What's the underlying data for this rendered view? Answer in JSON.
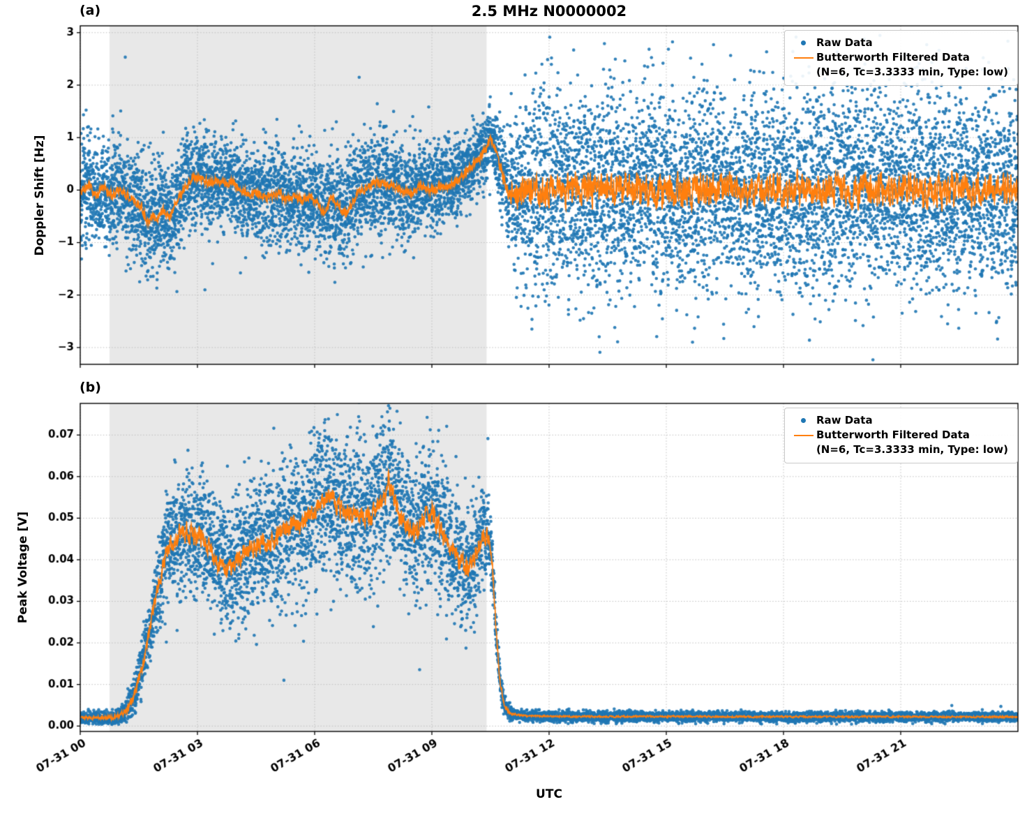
{
  "chart_data": {
    "type": "scatter",
    "title": "2.5 MHz N0000002",
    "xlabel": "UTC",
    "legend": {
      "raw_label": "Raw Data",
      "filtered_label": "Butterworth Filtered Data",
      "filtered_sublabel": "(N=6, Tc=3.3333 min, Type: low)"
    },
    "colors": {
      "raw": "#1f77b4",
      "filtered": "#ff7f0e",
      "shade": "#e8e8e8",
      "grid": "#bdbdbd",
      "axis": "#000000"
    },
    "x_hours_range": [
      0,
      24
    ],
    "x_ticks": [
      {
        "t": 0,
        "label": "07-31 00"
      },
      {
        "t": 3,
        "label": "07-31 03"
      },
      {
        "t": 6,
        "label": "07-31 06"
      },
      {
        "t": 9,
        "label": "07-31 09"
      },
      {
        "t": 12,
        "label": "07-31 12"
      },
      {
        "t": 15,
        "label": "07-31 15"
      },
      {
        "t": 18,
        "label": "07-31 18"
      },
      {
        "t": 21,
        "label": "07-31 21"
      }
    ],
    "shaded_region_hours": [
      0.75,
      10.4
    ],
    "panels": [
      {
        "tag": "(a)",
        "ylabel": "Doppler Shift [Hz]",
        "ylim": [
          -3.32,
          3.13
        ],
        "yticks": [
          {
            "v": -3,
            "label": "−3"
          },
          {
            "v": -2,
            "label": "−2"
          },
          {
            "v": -1,
            "label": "−1"
          },
          {
            "v": 0,
            "label": "0"
          },
          {
            "v": 1,
            "label": "1"
          },
          {
            "v": 2,
            "label": "2"
          },
          {
            "v": 3,
            "label": "3"
          }
        ],
        "n_scatter": 11000,
        "filtered_keypoints": [
          [
            0,
            -0.05
          ],
          [
            0.2,
            0.12
          ],
          [
            0.4,
            -0.12
          ],
          [
            0.6,
            0.05
          ],
          [
            0.8,
            -0.08
          ],
          [
            1.0,
            -0.02
          ],
          [
            1.2,
            -0.12
          ],
          [
            1.4,
            -0.22
          ],
          [
            1.6,
            -0.38
          ],
          [
            1.75,
            -0.62
          ],
          [
            1.85,
            -0.45
          ],
          [
            1.95,
            -0.62
          ],
          [
            2.1,
            -0.4
          ],
          [
            2.3,
            -0.48
          ],
          [
            2.5,
            -0.18
          ],
          [
            2.7,
            0.08
          ],
          [
            2.9,
            0.25
          ],
          [
            3.1,
            0.22
          ],
          [
            3.3,
            0.12
          ],
          [
            3.5,
            0.18
          ],
          [
            3.7,
            0.1
          ],
          [
            3.9,
            0.15
          ],
          [
            4.1,
            0.02
          ],
          [
            4.3,
            -0.08
          ],
          [
            4.5,
            -0.05
          ],
          [
            4.7,
            -0.15
          ],
          [
            4.9,
            -0.1
          ],
          [
            5.1,
            -0.05
          ],
          [
            5.3,
            -0.18
          ],
          [
            5.5,
            -0.12
          ],
          [
            5.7,
            -0.2
          ],
          [
            5.9,
            -0.12
          ],
          [
            6.1,
            -0.3
          ],
          [
            6.25,
            -0.45
          ],
          [
            6.4,
            -0.18
          ],
          [
            6.6,
            -0.28
          ],
          [
            6.75,
            -0.48
          ],
          [
            6.9,
            -0.35
          ],
          [
            7.05,
            -0.12
          ],
          [
            7.2,
            0.0
          ],
          [
            7.4,
            0.1
          ],
          [
            7.6,
            0.15
          ],
          [
            7.8,
            0.12
          ],
          [
            8.0,
            0.05
          ],
          [
            8.2,
            0.0
          ],
          [
            8.4,
            -0.05
          ],
          [
            8.6,
            0.02
          ],
          [
            8.8,
            0.08
          ],
          [
            9.0,
            0.0
          ],
          [
            9.2,
            0.05
          ],
          [
            9.4,
            0.08
          ],
          [
            9.6,
            0.15
          ],
          [
            9.8,
            0.28
          ],
          [
            10.0,
            0.45
          ],
          [
            10.2,
            0.6
          ],
          [
            10.35,
            0.75
          ],
          [
            10.5,
            1.0
          ],
          [
            10.65,
            0.7
          ],
          [
            10.8,
            0.3
          ],
          [
            10.95,
            0.0
          ],
          [
            11.1,
            -0.1
          ],
          [
            11.5,
            0.0
          ],
          [
            12,
            0.0
          ],
          [
            24,
            0.0
          ]
        ],
        "filtered_noise_amp": [
          [
            0,
            0.07
          ],
          [
            10.3,
            0.07
          ],
          [
            10.6,
            0.05
          ],
          [
            10.9,
            0.12
          ],
          [
            11.2,
            0.26
          ],
          [
            24,
            0.26
          ]
        ],
        "scatter_sigma": [
          [
            0,
            0.55
          ],
          [
            0.5,
            0.5
          ],
          [
            1.0,
            0.45
          ],
          [
            1.8,
            0.55
          ],
          [
            2.5,
            0.5
          ],
          [
            3.0,
            0.42
          ],
          [
            4.0,
            0.45
          ],
          [
            5.0,
            0.45
          ],
          [
            6.0,
            0.48
          ],
          [
            7.0,
            0.48
          ],
          [
            8.0,
            0.45
          ],
          [
            9.0,
            0.42
          ],
          [
            9.8,
            0.38
          ],
          [
            10.3,
            0.32
          ],
          [
            10.6,
            0.28
          ],
          [
            10.9,
            0.5
          ],
          [
            11.2,
            0.8
          ],
          [
            11.6,
            0.95
          ],
          [
            12.5,
            0.95
          ],
          [
            24,
            0.95
          ]
        ]
      },
      {
        "tag": "(b)",
        "ylabel": "Peak Voltage [V]",
        "ylim": [
          -0.0013,
          0.0776
        ],
        "clamp_min": 0.0004,
        "yticks": [
          {
            "v": 0.0,
            "label": "0.00"
          },
          {
            "v": 0.01,
            "label": "0.01"
          },
          {
            "v": 0.02,
            "label": "0.02"
          },
          {
            "v": 0.03,
            "label": "0.03"
          },
          {
            "v": 0.04,
            "label": "0.04"
          },
          {
            "v": 0.05,
            "label": "0.05"
          },
          {
            "v": 0.06,
            "label": "0.06"
          },
          {
            "v": 0.07,
            "label": "0.07"
          }
        ],
        "n_scatter": 10000,
        "filtered_keypoints": [
          [
            0,
            0.002
          ],
          [
            0.8,
            0.002
          ],
          [
            1.0,
            0.0025
          ],
          [
            1.2,
            0.004
          ],
          [
            1.4,
            0.008
          ],
          [
            1.6,
            0.015
          ],
          [
            1.8,
            0.024
          ],
          [
            2.0,
            0.034
          ],
          [
            2.2,
            0.042
          ],
          [
            2.4,
            0.045
          ],
          [
            2.6,
            0.047
          ],
          [
            2.8,
            0.0465
          ],
          [
            3.0,
            0.0455
          ],
          [
            3.2,
            0.044
          ],
          [
            3.4,
            0.0415
          ],
          [
            3.6,
            0.0385
          ],
          [
            3.8,
            0.0375
          ],
          [
            4.0,
            0.0395
          ],
          [
            4.2,
            0.041
          ],
          [
            4.4,
            0.0425
          ],
          [
            4.6,
            0.044
          ],
          [
            4.8,
            0.0435
          ],
          [
            5.0,
            0.0455
          ],
          [
            5.2,
            0.047
          ],
          [
            5.4,
            0.0485
          ],
          [
            5.6,
            0.0475
          ],
          [
            5.8,
            0.05
          ],
          [
            6.0,
            0.052
          ],
          [
            6.2,
            0.054
          ],
          [
            6.4,
            0.0555
          ],
          [
            6.6,
            0.053
          ],
          [
            6.8,
            0.051
          ],
          [
            7.0,
            0.0505
          ],
          [
            7.2,
            0.0515
          ],
          [
            7.4,
            0.05
          ],
          [
            7.6,
            0.0525
          ],
          [
            7.8,
            0.055
          ],
          [
            7.9,
            0.059
          ],
          [
            8.05,
            0.054
          ],
          [
            8.2,
            0.05
          ],
          [
            8.4,
            0.0475
          ],
          [
            8.6,
            0.0465
          ],
          [
            8.8,
            0.05
          ],
          [
            9.0,
            0.0525
          ],
          [
            9.15,
            0.048
          ],
          [
            9.3,
            0.046
          ],
          [
            9.5,
            0.0425
          ],
          [
            9.7,
            0.04
          ],
          [
            9.9,
            0.0375
          ],
          [
            10.1,
            0.041
          ],
          [
            10.3,
            0.0455
          ],
          [
            10.45,
            0.046
          ],
          [
            10.55,
            0.038
          ],
          [
            10.65,
            0.022
          ],
          [
            10.75,
            0.01
          ],
          [
            10.85,
            0.005
          ],
          [
            11.0,
            0.003
          ],
          [
            11.3,
            0.0025
          ],
          [
            12,
            0.0023
          ],
          [
            24,
            0.0022
          ]
        ],
        "filtered_noise_amp": [
          [
            0,
            0.0003
          ],
          [
            0.9,
            0.0004
          ],
          [
            1.4,
            0.0009
          ],
          [
            2.0,
            0.0015
          ],
          [
            2.5,
            0.002
          ],
          [
            10.2,
            0.002
          ],
          [
            10.6,
            0.0012
          ],
          [
            10.9,
            0.0004
          ],
          [
            11.2,
            0.00018
          ],
          [
            24,
            0.00018
          ]
        ],
        "scatter_sigma": [
          [
            0,
            0.0006
          ],
          [
            0.9,
            0.0008
          ],
          [
            1.2,
            0.0015
          ],
          [
            1.5,
            0.003
          ],
          [
            1.8,
            0.0045
          ],
          [
            2.1,
            0.006
          ],
          [
            2.4,
            0.007
          ],
          [
            2.8,
            0.0075
          ],
          [
            3.5,
            0.008
          ],
          [
            4.5,
            0.008
          ],
          [
            5.5,
            0.0085
          ],
          [
            6.5,
            0.009
          ],
          [
            7.5,
            0.009
          ],
          [
            8.5,
            0.0085
          ],
          [
            9.5,
            0.008
          ],
          [
            10.2,
            0.007
          ],
          [
            10.5,
            0.004
          ],
          [
            10.7,
            0.002
          ],
          [
            10.9,
            0.001
          ],
          [
            11.1,
            0.0006
          ],
          [
            24,
            0.0005
          ]
        ]
      }
    ]
  }
}
